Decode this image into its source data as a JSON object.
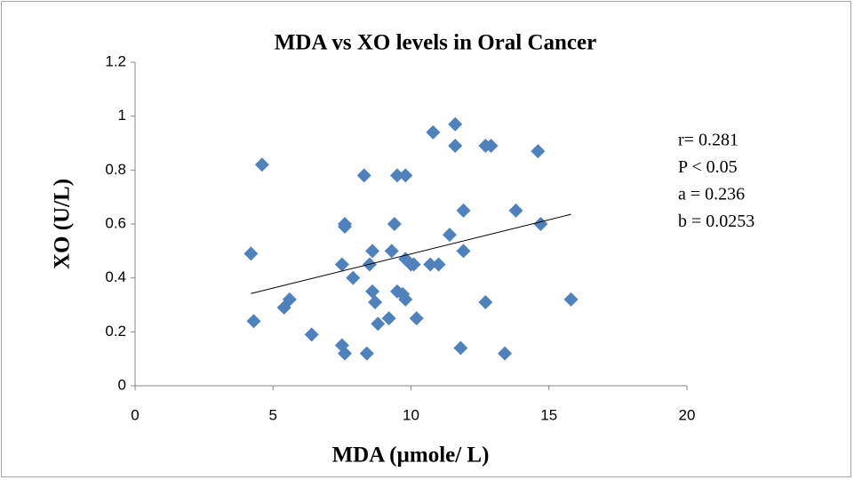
{
  "chart_data": {
    "type": "scatter",
    "title": "MDA vs XO levels in Oral Cancer",
    "x_label": "MDA (µmole/ L)",
    "y_label": "XO (U/L)",
    "annotations": [
      "r= 0.281",
      "P < 0.05",
      "a = 0.236",
      "b = 0.0253"
    ],
    "xlim": [
      0,
      20
    ],
    "xticks": [
      0,
      5,
      10,
      15,
      20
    ],
    "ylim": [
      0,
      1.2
    ],
    "yticks": [
      0,
      0.2,
      0.4,
      0.6,
      0.8,
      1,
      1.2
    ],
    "series": [
      {
        "color": "#4f81bd",
        "x": [
          4.2,
          4.3,
          4.6,
          5.4,
          5.6,
          6.4,
          7.5,
          7.5,
          7.6,
          7.6,
          7.6,
          7.9,
          8.3,
          8.4,
          8.5,
          8.6,
          8.6,
          8.7,
          8.8,
          9.3,
          9.2,
          9.4,
          9.5,
          9.5,
          9.8,
          9.8,
          9.8,
          9.7,
          10.0,
          10.1,
          10.2,
          10.8,
          10.7,
          11.0,
          11.4,
          11.6,
          11.6,
          11.8,
          11.9,
          11.9,
          12.7,
          12.7,
          12.9,
          13.4,
          13.8,
          14.6,
          14.7,
          15.8
        ],
        "values": [
          0.49,
          0.24,
          0.82,
          0.29,
          0.32,
          0.19,
          0.15,
          0.45,
          0.6,
          0.59,
          0.12,
          0.4,
          0.78,
          0.12,
          0.45,
          0.5,
          0.35,
          0.31,
          0.23,
          0.5,
          0.25,
          0.6,
          0.35,
          0.78,
          0.47,
          0.78,
          0.32,
          0.34,
          0.45,
          0.45,
          0.25,
          0.94,
          0.45,
          0.45,
          0.56,
          0.97,
          0.89,
          0.14,
          0.65,
          0.5,
          0.31,
          0.89,
          0.89,
          0.12,
          0.65,
          0.87,
          0.6,
          0.32
        ]
      }
    ],
    "trendline": {
      "x": [
        4.2,
        15.8
      ],
      "values": [
        0.342,
        0.636
      ],
      "color": "#000000"
    }
  }
}
